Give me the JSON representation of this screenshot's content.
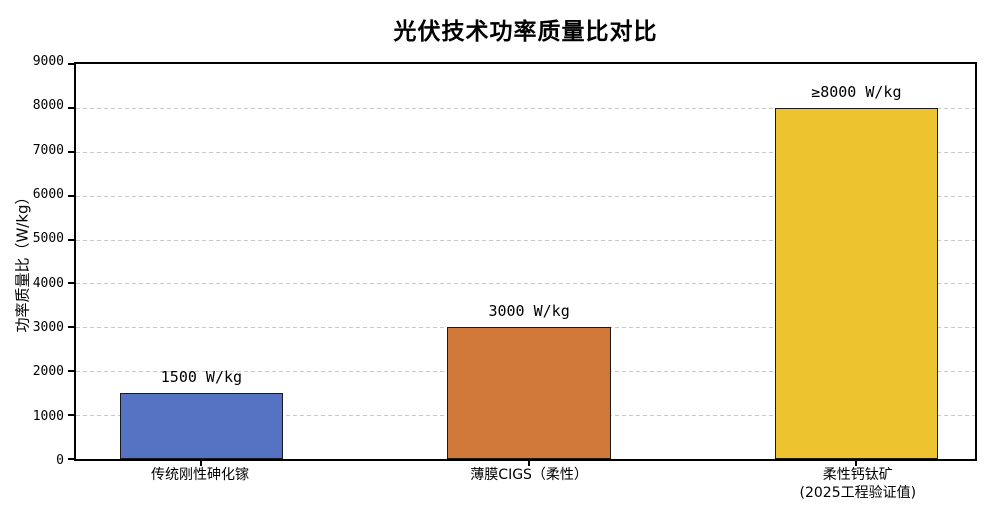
{
  "chart_data": {
    "type": "bar",
    "title": "光伏技术功率质量比对比",
    "ylabel": "功率质量比（W/kg）",
    "xlabel": "",
    "ylim": [
      0,
      9000
    ],
    "yticks": [
      0,
      1000,
      2000,
      3000,
      4000,
      5000,
      6000,
      7000,
      8000,
      9000
    ],
    "grid": "horizontal-dashed",
    "legend_position": "none",
    "categories": [
      "传统刚性砷化镓",
      "薄膜CIGS（柔性）",
      "柔性钙钛矿\n(2025工程验证值)"
    ],
    "values": [
      1500,
      3000,
      8000
    ],
    "bar_labels": [
      "1500 W/kg",
      "3000 W/kg",
      "≥8000 W/kg"
    ],
    "bar_colors": [
      "#5673C3",
      "#D1793A",
      "#EDC32F"
    ],
    "bar_edge_color": "#1A1A1A",
    "grid_color": "#C9C9C9",
    "background_color": "#FFFFFF"
  }
}
